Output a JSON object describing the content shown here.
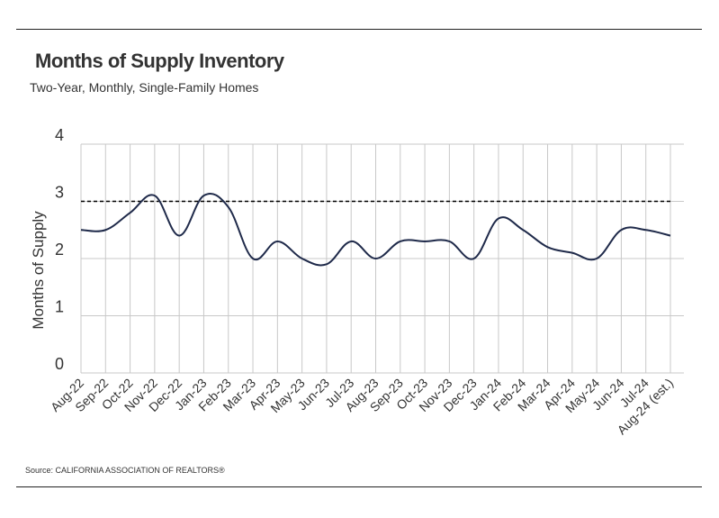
{
  "title": "Months of Supply Inventory",
  "subtitle": "Two-Year, Monthly, Single-Family Homes",
  "source": "Source:  CALIFORNIA ASSOCIATION OF REALTORS®",
  "colors": {
    "line": "#1f2a4a",
    "grid": "#c8c8c8",
    "reference": "#000000",
    "text": "#333333"
  },
  "chart_data": {
    "type": "line",
    "title": "Months of Supply Inventory",
    "subtitle": "Two-Year, Monthly, Single-Family Homes",
    "xlabel": "",
    "ylabel": "Months of Supply",
    "ylim": [
      0,
      4
    ],
    "yticks": [
      0,
      1,
      2,
      3,
      4
    ],
    "grid": true,
    "legend": "none",
    "categories": [
      "Aug-22",
      "Sep-22",
      "Oct-22",
      "Nov-22",
      "Dec-22",
      "Jan-23",
      "Feb-23",
      "Mar-23",
      "Apr-23",
      "May-23",
      "Jun-23",
      "Jul-23",
      "Aug-23",
      "Sep-23",
      "Oct-23",
      "Nov-23",
      "Dec-23",
      "Jan-24",
      "Feb-24",
      "Mar-24",
      "Apr-24",
      "May-24",
      "Jun-24",
      "Jul-24",
      "Aug-24 (est.)"
    ],
    "series": [
      {
        "name": "Months of Supply",
        "values": [
          2.5,
          2.5,
          2.8,
          3.1,
          2.4,
          3.1,
          2.9,
          2.0,
          2.3,
          2.0,
          1.9,
          2.3,
          2.0,
          2.3,
          2.3,
          2.3,
          2.0,
          2.7,
          2.5,
          2.2,
          2.1,
          2.0,
          2.5,
          2.5,
          2.4
        ]
      }
    ],
    "reference_line": {
      "value": 3,
      "style": "dashed"
    }
  }
}
